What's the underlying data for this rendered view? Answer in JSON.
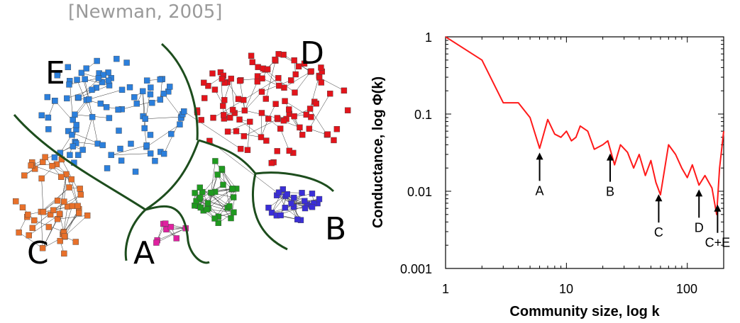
{
  "citation": "[Newman, 2005]",
  "network": {
    "communities": [
      {
        "label": "E",
        "color": "#2b7fdc"
      },
      {
        "label": "D",
        "color": "#e3141b"
      },
      {
        "label": "C",
        "color": "#e8702a"
      },
      {
        "label": "A",
        "color": "#e020a0"
      },
      {
        "label": "B",
        "color": "#3a2ed8"
      },
      {
        "label": "",
        "color": "#1f9a1f"
      }
    ],
    "boundary_color": "#1d4d1d"
  },
  "chart_data": {
    "type": "line",
    "xlabel": "Community size, log k",
    "ylabel": "Conductance, log Φ(k)",
    "xscale": "log",
    "yscale": "log",
    "xlim": [
      1,
      200
    ],
    "ylim": [
      0.001,
      1
    ],
    "xticks": [
      "1",
      "10",
      "100"
    ],
    "yticks": [
      "1",
      "0.1",
      "0.01",
      "0.001"
    ],
    "line_color": "#ff1a1a",
    "series": [
      {
        "x": [
          1,
          2,
          3,
          4,
          5,
          6,
          7,
          8,
          9,
          10,
          11,
          12,
          13,
          15,
          17,
          20,
          22,
          25,
          28,
          32,
          36,
          40,
          45,
          50,
          55,
          60,
          70,
          80,
          90,
          100,
          110,
          125,
          140,
          160,
          175,
          185,
          200
        ],
        "y": [
          1,
          0.5,
          0.14,
          0.14,
          0.09,
          0.036,
          0.085,
          0.055,
          0.05,
          0.06,
          0.045,
          0.05,
          0.07,
          0.06,
          0.035,
          0.04,
          0.045,
          0.022,
          0.04,
          0.032,
          0.02,
          0.03,
          0.016,
          0.025,
          0.013,
          0.009,
          0.04,
          0.03,
          0.02,
          0.015,
          0.022,
          0.012,
          0.016,
          0.011,
          0.005,
          0.02,
          0.06
        ]
      }
    ],
    "annotations": [
      {
        "text": "A",
        "x": 6
      },
      {
        "text": "B",
        "x": 23
      },
      {
        "text": "C",
        "x": 58
      },
      {
        "text": "D",
        "x": 125
      },
      {
        "text": "C+E",
        "x": 178
      }
    ]
  }
}
